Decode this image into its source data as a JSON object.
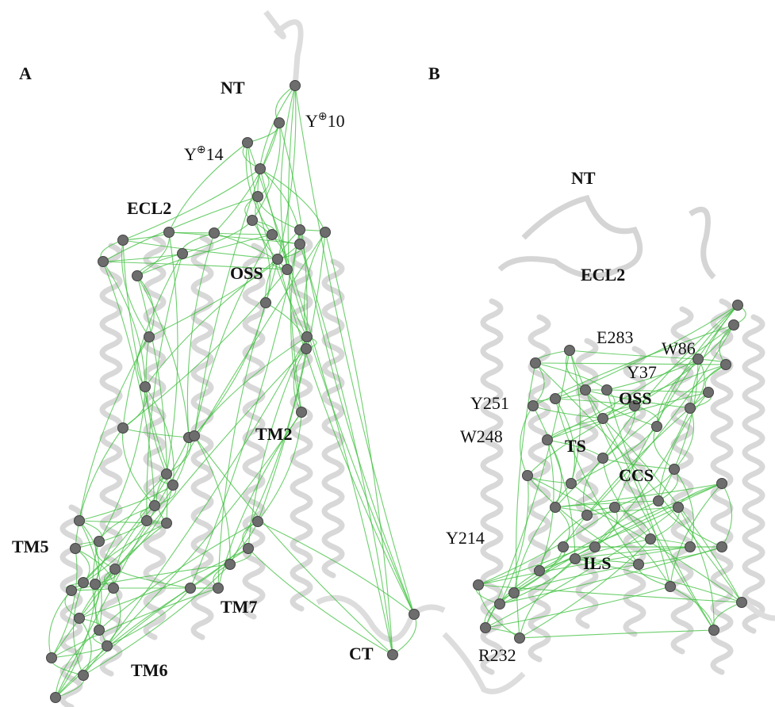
{
  "panel_a": {
    "label": "A",
    "annotations": [
      {
        "text": "NT"
      },
      {
        "base": "Y",
        "sup": "⊕",
        "num": "10"
      },
      {
        "base": "Y",
        "sup": "⊕",
        "num": "14"
      },
      {
        "text": "ECL2"
      },
      {
        "text": "OSS"
      },
      {
        "text": "TM2"
      },
      {
        "text": "TM5"
      },
      {
        "text": "TM7"
      },
      {
        "text": "TM6"
      },
      {
        "text": "CT"
      }
    ]
  },
  "panel_b": {
    "label": "B",
    "annotations": [
      {
        "text": "NT"
      },
      {
        "text": "ECL2"
      },
      {
        "text": "E283"
      },
      {
        "text": "W86"
      },
      {
        "text": "Y37"
      },
      {
        "text": "Y251"
      },
      {
        "text": "OSS"
      },
      {
        "text": "W248"
      },
      {
        "text": "TS"
      },
      {
        "text": "CCS"
      },
      {
        "text": "Y214"
      },
      {
        "text": "ILS"
      },
      {
        "text": "R232"
      }
    ]
  }
}
